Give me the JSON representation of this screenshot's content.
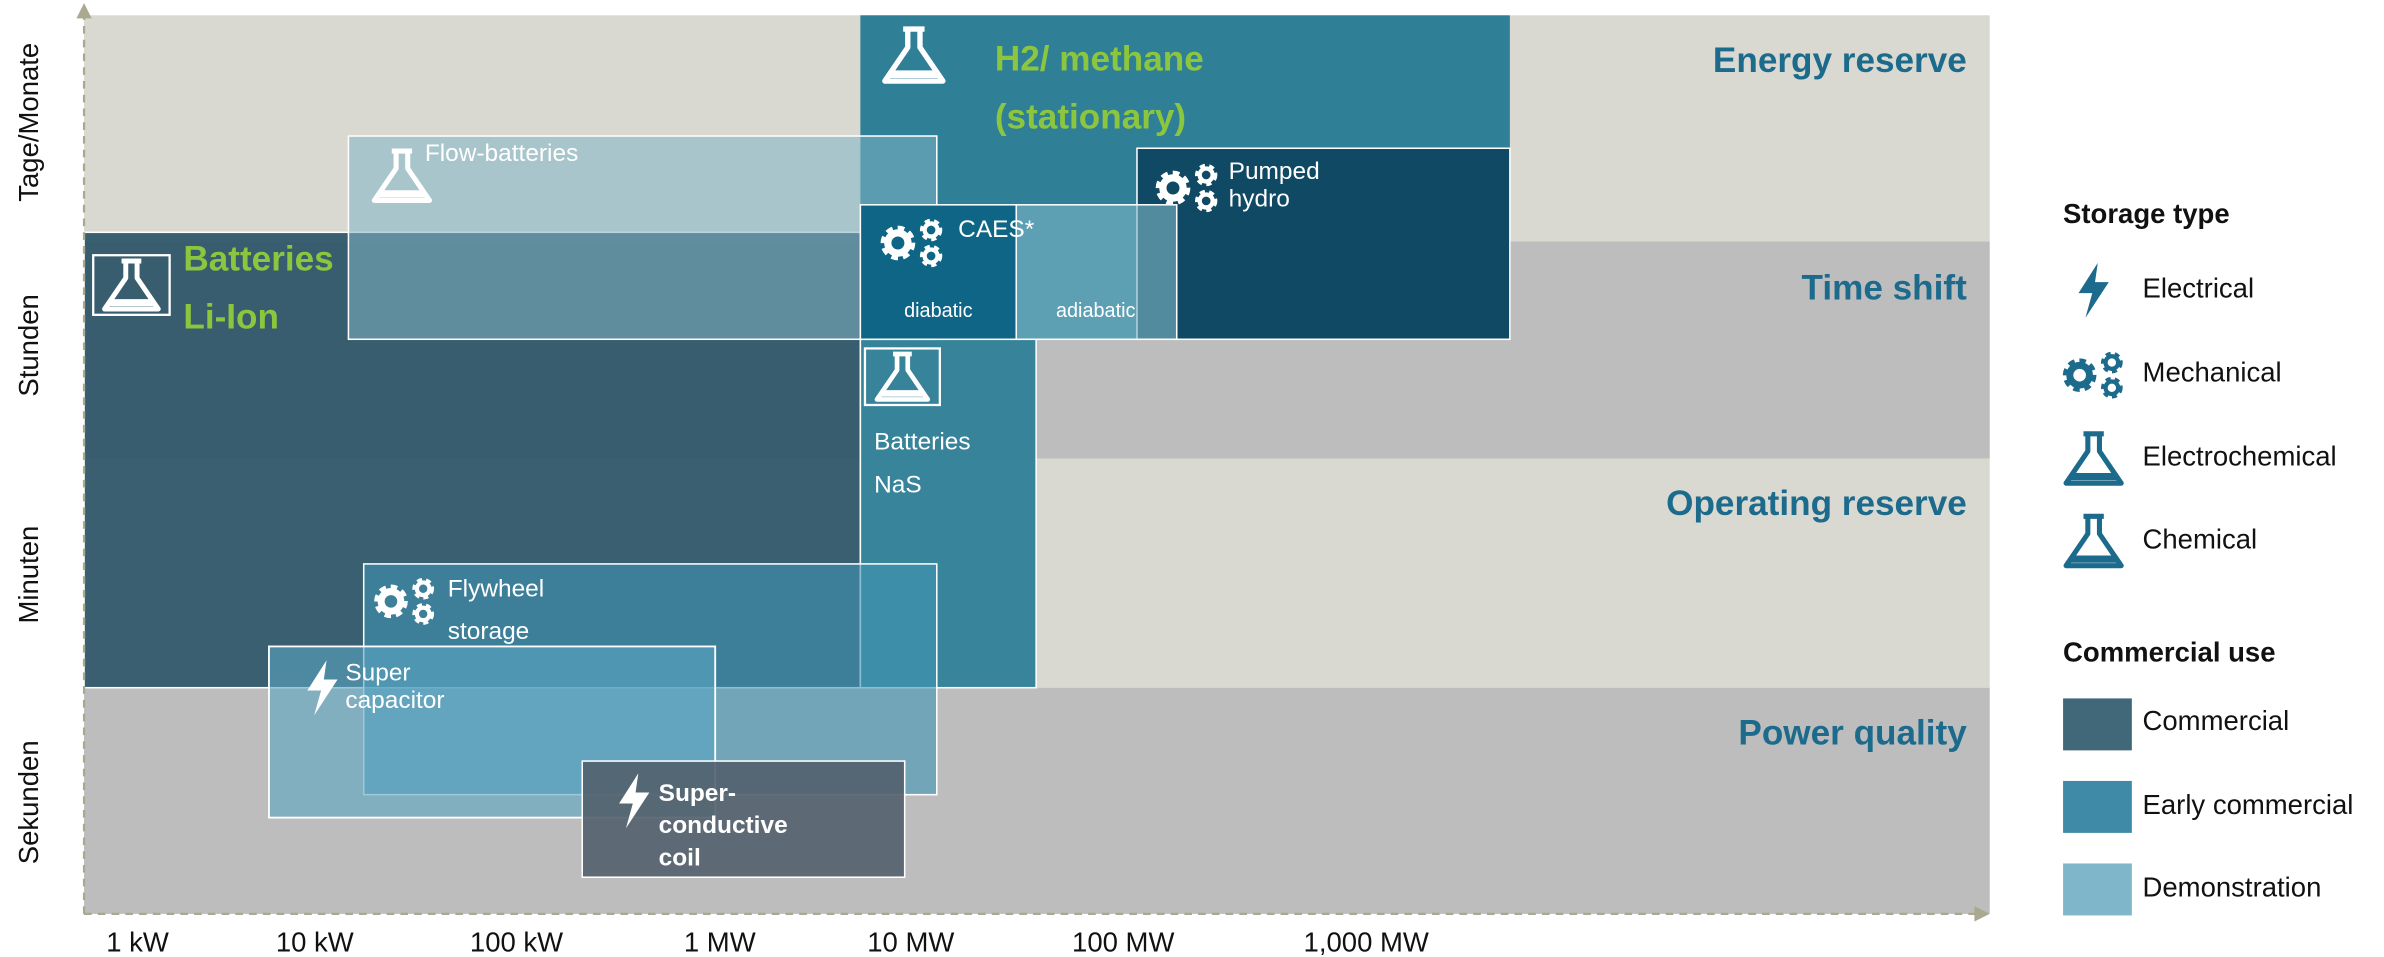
{
  "y_axis": {
    "labels": [
      "Tage/Monate",
      "Stunden",
      "Minuten",
      "Sekunden"
    ]
  },
  "x_axis": {
    "labels": [
      "1 kW",
      "10 kW",
      "100 kW",
      "1 MW",
      "10 MW",
      "100 MW",
      "1,000 MW"
    ]
  },
  "bands": [
    "Energy reserve",
    "Time shift",
    "Operating reserve",
    "Power quality"
  ],
  "technologies": {
    "h2": [
      "H2/ methane",
      "(stationary)"
    ],
    "li_ion": [
      "Batteries",
      "Li-Ion"
    ],
    "flow": "Flow-batteries",
    "pumped": [
      "Pumped",
      "hydro"
    ],
    "caes": {
      "label": "CAES*",
      "parts": [
        "diabatic",
        "adiabatic"
      ]
    },
    "nas": [
      "Batteries",
      "NaS"
    ],
    "flywheel": [
      "Flywheel",
      "storage"
    ],
    "supercap": [
      "Super",
      "capacitor"
    ],
    "smes": [
      "Super-",
      "conductive",
      "coil"
    ]
  },
  "legend": {
    "storage_type": {
      "title": "Storage type",
      "items": [
        "Electrical",
        "Mechanical",
        "Electrochemical",
        "Chemical"
      ]
    },
    "commercial_use": {
      "title": "Commercial use",
      "items": [
        "Commercial",
        "Early commercial",
        "Demonstration"
      ]
    }
  }
}
